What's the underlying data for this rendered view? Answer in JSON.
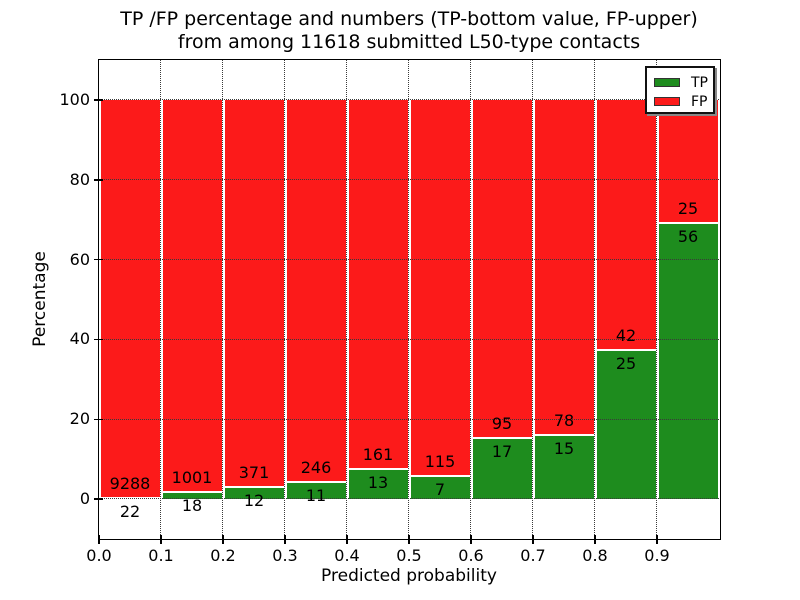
{
  "figure": {
    "title_line1": "TP /FP percentage and numbers (TP-bottom value, FP-upper)",
    "title_line2": "from among 11618 submitted L50-type contacts",
    "xlabel": "Predicted probability",
    "ylabel": "Percentage"
  },
  "chart_data": {
    "type": "bar",
    "stacked": true,
    "title": "TP /FP percentage and numbers (TP-bottom value, FP-upper) from among 11618 submitted L50-type contacts",
    "xlabel": "Predicted probability",
    "ylabel": "Percentage",
    "total_contacts": 11618,
    "x_tick_labels": [
      "0.0",
      "0.1",
      "0.2",
      "0.3",
      "0.4",
      "0.5",
      "0.6",
      "0.7",
      "0.8",
      "0.9"
    ],
    "y_ticks": [
      0,
      20,
      40,
      60,
      80,
      100
    ],
    "xlim": [
      0.0,
      1.0
    ],
    "ylim": [
      -10,
      110
    ],
    "bin_width": 0.1,
    "grid": "dotted both axes",
    "legend_position": "upper right",
    "bars_show": "percentage TP/(TP+FP)*100 stacked to 100, labels are raw counts (TP below boundary, FP above)",
    "series": [
      {
        "name": "TP",
        "color": "#1e8c1e",
        "counts": [
          22,
          18,
          12,
          11,
          13,
          7,
          17,
          15,
          25,
          56
        ]
      },
      {
        "name": "FP",
        "color": "#fc1a1a",
        "counts": [
          9288,
          1001,
          371,
          246,
          161,
          115,
          95,
          78,
          42,
          25
        ]
      }
    ],
    "tp_percent": [
      0.24,
      1.77,
      3.13,
      4.28,
      7.47,
      5.74,
      15.18,
      16.13,
      37.31,
      69.14
    ]
  }
}
